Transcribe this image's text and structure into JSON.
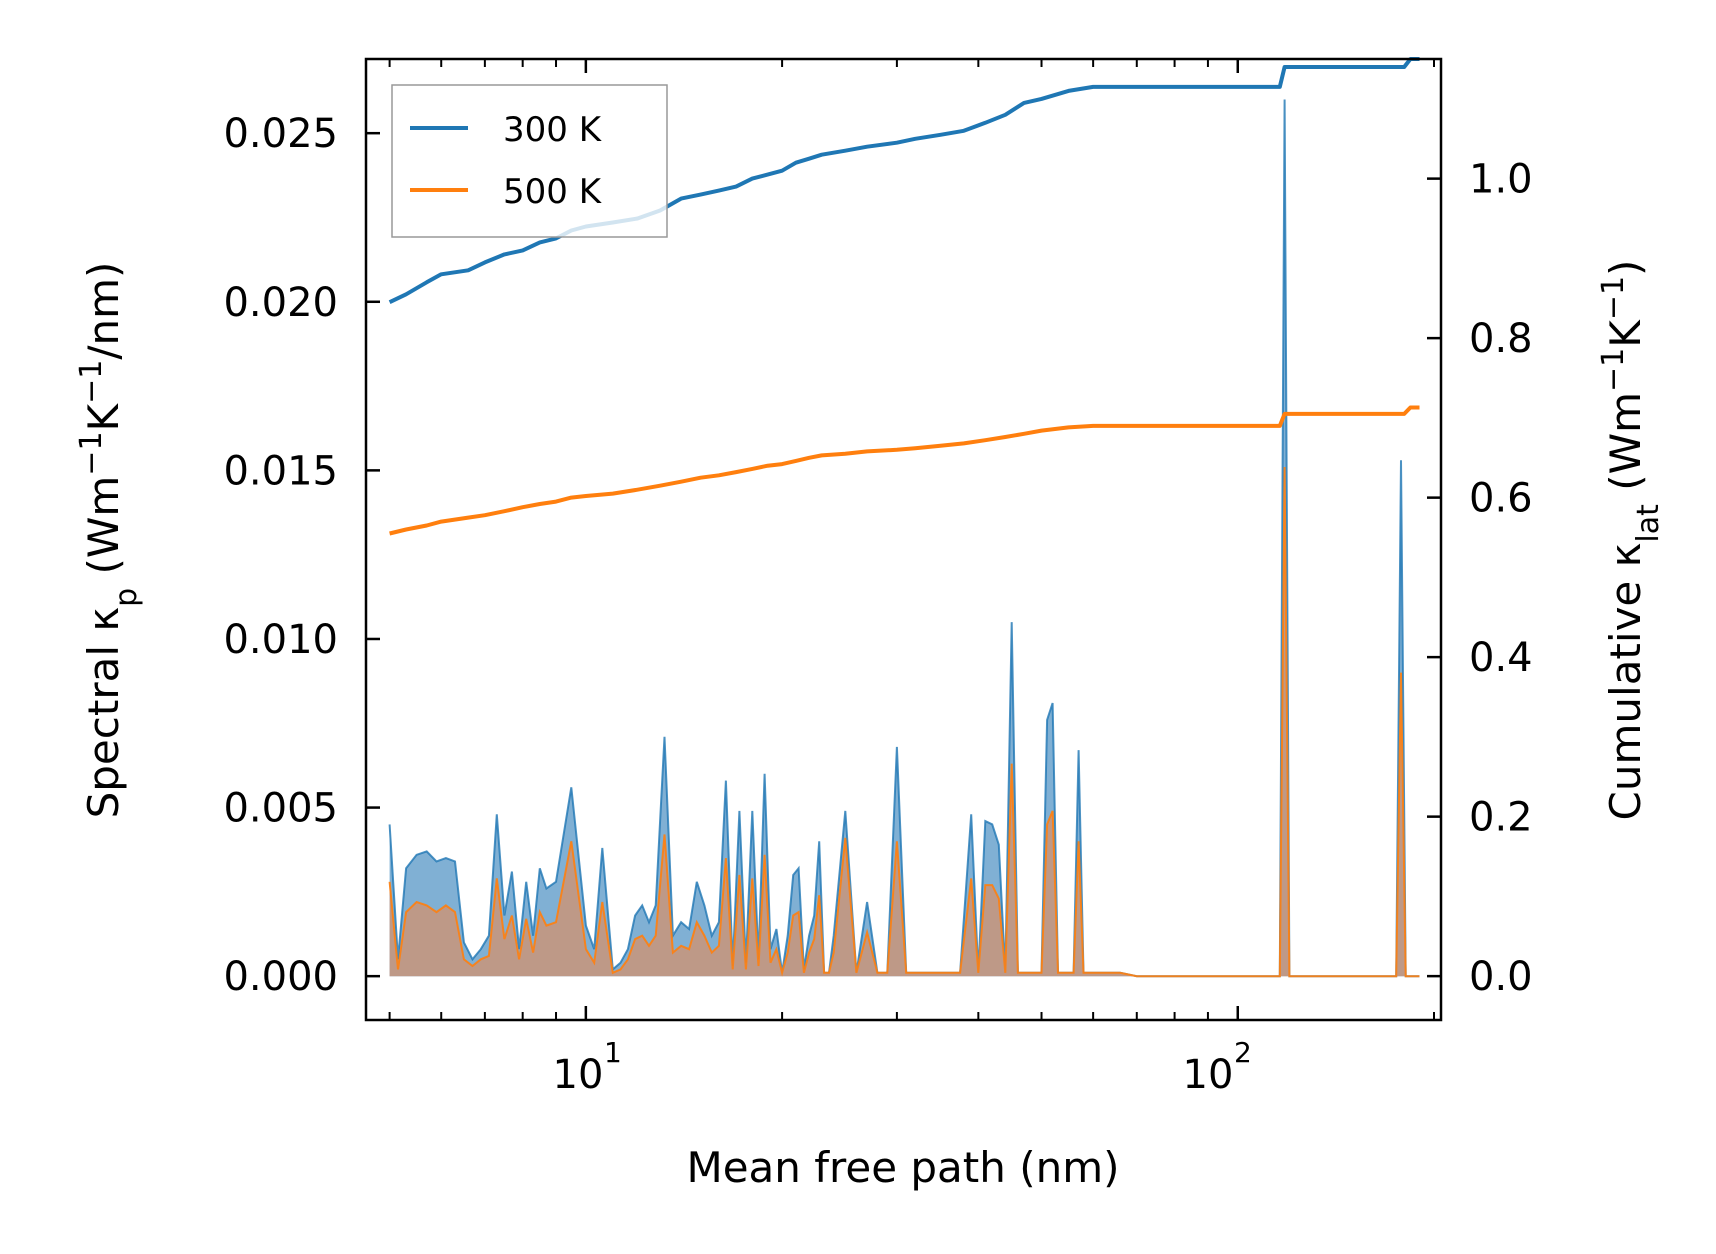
{
  "chart_data": {
    "type": "line",
    "xscale": "log",
    "xlim": [
      4.6,
      205
    ],
    "xlabel": "Mean free path (nm)",
    "ylabel_left": "Spectral κp (Wm−1K−1/nm)",
    "ylabel_right": "Cumulative κlat (Wm−1K−1)",
    "ylim_left": [
      -0.0013,
      0.0272
    ],
    "ylim_right": [
      -0.055,
      1.15
    ],
    "x_tick_labels": [
      "10",
      "1",
      "10",
      "2"
    ],
    "left_tick_labels": [
      "0.000",
      "0.005",
      "0.010",
      "0.015",
      "0.020",
      "0.025"
    ],
    "right_tick_labels": [
      "0.0",
      "0.2",
      "0.4",
      "0.6",
      "0.8",
      "1.0"
    ],
    "legend_position": "top-left",
    "colors": {
      "300K": "#1f77b4",
      "500K": "#ff7f0e",
      "fill_300K": "#6aa2cd",
      "fill_500K": "#c4977e"
    },
    "series": [
      {
        "name": "300 K",
        "color": "#1f77b4",
        "axis": "right",
        "cumulative": [
          [
            5.0,
            0.845
          ],
          [
            5.3,
            0.855
          ],
          [
            5.7,
            0.87
          ],
          [
            6.0,
            0.88
          ],
          [
            6.6,
            0.885
          ],
          [
            7.0,
            0.895
          ],
          [
            7.5,
            0.905
          ],
          [
            8.0,
            0.91
          ],
          [
            8.5,
            0.92
          ],
          [
            9.0,
            0.925
          ],
          [
            9.5,
            0.935
          ],
          [
            10,
            0.94
          ],
          [
            11,
            0.945
          ],
          [
            12,
            0.95
          ],
          [
            13,
            0.96
          ],
          [
            14,
            0.975
          ],
          [
            15,
            0.98
          ],
          [
            16,
            0.985
          ],
          [
            17,
            0.99
          ],
          [
            18,
            1.0
          ],
          [
            19,
            1.005
          ],
          [
            20,
            1.01
          ],
          [
            21,
            1.02
          ],
          [
            22,
            1.025
          ],
          [
            23,
            1.03
          ],
          [
            25,
            1.035
          ],
          [
            27,
            1.04
          ],
          [
            30,
            1.045
          ],
          [
            32,
            1.05
          ],
          [
            35,
            1.055
          ],
          [
            38,
            1.06
          ],
          [
            41,
            1.07
          ],
          [
            44,
            1.08
          ],
          [
            47,
            1.095
          ],
          [
            50,
            1.1
          ],
          [
            55,
            1.11
          ],
          [
            60,
            1.115
          ],
          [
            70,
            1.115
          ],
          [
            90,
            1.115
          ],
          [
            116,
            1.115
          ],
          [
            118,
            1.14
          ],
          [
            125,
            1.14
          ],
          [
            150,
            1.14
          ],
          [
            180,
            1.14
          ],
          [
            184,
            1.15
          ],
          [
            190,
            1.15
          ]
        ]
      },
      {
        "name": "500 K",
        "color": "#ff7f0e",
        "axis": "right",
        "cumulative": [
          [
            5.0,
            0.555
          ],
          [
            5.3,
            0.56
          ],
          [
            5.7,
            0.565
          ],
          [
            6.0,
            0.57
          ],
          [
            6.6,
            0.575
          ],
          [
            7.0,
            0.578
          ],
          [
            7.5,
            0.583
          ],
          [
            8.0,
            0.588
          ],
          [
            8.5,
            0.592
          ],
          [
            9.0,
            0.595
          ],
          [
            9.5,
            0.6
          ],
          [
            10,
            0.602
          ],
          [
            11,
            0.605
          ],
          [
            12,
            0.61
          ],
          [
            13,
            0.615
          ],
          [
            14,
            0.62
          ],
          [
            15,
            0.625
          ],
          [
            16,
            0.628
          ],
          [
            17,
            0.632
          ],
          [
            18,
            0.636
          ],
          [
            19,
            0.64
          ],
          [
            20,
            0.642
          ],
          [
            21,
            0.646
          ],
          [
            22,
            0.65
          ],
          [
            23,
            0.653
          ],
          [
            25,
            0.655
          ],
          [
            27,
            0.658
          ],
          [
            30,
            0.66
          ],
          [
            32,
            0.662
          ],
          [
            35,
            0.665
          ],
          [
            38,
            0.668
          ],
          [
            41,
            0.672
          ],
          [
            44,
            0.676
          ],
          [
            47,
            0.68
          ],
          [
            50,
            0.684
          ],
          [
            55,
            0.688
          ],
          [
            60,
            0.69
          ],
          [
            70,
            0.69
          ],
          [
            90,
            0.69
          ],
          [
            116,
            0.69
          ],
          [
            118,
            0.705
          ],
          [
            125,
            0.705
          ],
          [
            150,
            0.705
          ],
          [
            180,
            0.705
          ],
          [
            184,
            0.713
          ],
          [
            190,
            0.713
          ]
        ]
      }
    ],
    "spectral": {
      "axis": "left",
      "x": [
        5.0,
        5.15,
        5.3,
        5.5,
        5.7,
        5.9,
        6.1,
        6.3,
        6.5,
        6.7,
        6.9,
        7.1,
        7.3,
        7.5,
        7.7,
        7.9,
        8.1,
        8.3,
        8.5,
        8.7,
        9.0,
        9.5,
        10.0,
        10.3,
        10.6,
        11.0,
        11.3,
        11.6,
        11.9,
        12.2,
        12.5,
        12.8,
        13.2,
        13.6,
        14.0,
        14.4,
        14.8,
        15.2,
        15.6,
        16.0,
        16.4,
        16.8,
        17.2,
        17.6,
        18.0,
        18.4,
        18.8,
        19.2,
        19.6,
        20.0,
        20.4,
        20.8,
        21.2,
        21.6,
        22.0,
        22.4,
        22.8,
        23.2,
        23.6,
        24.0,
        25.0,
        26.0,
        27.0,
        28.0,
        29.0,
        30.0,
        31.0,
        32.0,
        33.0,
        34.0,
        35.0,
        36.0,
        37.5,
        39.0,
        40.0,
        41.0,
        42.0,
        43.0,
        44.0,
        45.0,
        46.0,
        47.0,
        48.0,
        49.0,
        50.0,
        51.0,
        52.0,
        53.0,
        54.0,
        55.0,
        56.0,
        57.0,
        58.0,
        60.0,
        62.0,
        64.0,
        66.0,
        70.0,
        80.0,
        90.0,
        100.0,
        110.0,
        114.0,
        116.0,
        118.0,
        120.0,
        122.0,
        124.0,
        130.0,
        150.0,
        175.0,
        178.0,
        181.0,
        184.0,
        187.0,
        190.0
      ],
      "k300": [
        0.0045,
        0.0005,
        0.0032,
        0.0036,
        0.0037,
        0.0034,
        0.0035,
        0.0034,
        0.001,
        0.0005,
        0.0008,
        0.0012,
        0.0048,
        0.0018,
        0.0031,
        0.0008,
        0.0028,
        0.0012,
        0.0032,
        0.0026,
        0.0028,
        0.0056,
        0.0015,
        0.0008,
        0.0038,
        0.0002,
        0.0004,
        0.0008,
        0.0018,
        0.0021,
        0.0016,
        0.0021,
        0.0071,
        0.0012,
        0.0016,
        0.0014,
        0.0028,
        0.0021,
        0.0012,
        0.0016,
        0.0058,
        0.0003,
        0.0049,
        0.0004,
        0.0049,
        0.0005,
        0.006,
        0.0008,
        0.0014,
        0.0001,
        0.0012,
        0.003,
        0.0032,
        0.0002,
        0.0012,
        0.0018,
        0.004,
        0.0001,
        0.0001,
        0.0012,
        0.0049,
        0.0001,
        0.0022,
        0.0001,
        0.0001,
        0.0068,
        0.0001,
        0.0001,
        0.0001,
        0.0001,
        0.0001,
        0.0001,
        0.0001,
        0.0048,
        0.0001,
        0.0046,
        0.0045,
        0.0039,
        0.0001,
        0.0105,
        0.0001,
        0.0001,
        0.0001,
        0.0001,
        0.0001,
        0.0076,
        0.0081,
        0.0001,
        0.0001,
        0.0001,
        0.0001,
        0.0067,
        0.0001,
        0.0001,
        0.0001,
        0.0001,
        0.0001,
        0.0,
        0.0,
        0.0,
        0.0,
        0.0,
        0.0,
        0.0,
        0.026,
        0.0,
        0.0,
        0.0,
        0.0,
        0.0,
        0.0,
        0.0153,
        0.0,
        0.0,
        0.0,
        0.0
      ],
      "k500": [
        0.0028,
        0.0002,
        0.0019,
        0.0022,
        0.0021,
        0.0019,
        0.0021,
        0.0019,
        0.0005,
        0.0003,
        0.0005,
        0.0006,
        0.0029,
        0.0011,
        0.0018,
        0.0005,
        0.0017,
        0.0007,
        0.0019,
        0.0015,
        0.0016,
        0.004,
        0.0008,
        0.0004,
        0.0022,
        0.0001,
        0.0002,
        0.0005,
        0.0011,
        0.0012,
        0.0009,
        0.0012,
        0.0042,
        0.0007,
        0.0009,
        0.0008,
        0.0016,
        0.0012,
        0.0007,
        0.0009,
        0.0035,
        0.0002,
        0.003,
        0.0002,
        0.0029,
        0.0003,
        0.0036,
        0.0004,
        0.0008,
        0.0001,
        0.0007,
        0.0018,
        0.0019,
        0.0001,
        0.0007,
        0.0011,
        0.0024,
        0.0001,
        0.0001,
        0.0007,
        0.0041,
        0.0001,
        0.0013,
        0.0001,
        0.0001,
        0.004,
        0.0001,
        0.0001,
        0.0001,
        0.0001,
        0.0001,
        0.0001,
        0.0001,
        0.0029,
        0.0001,
        0.0027,
        0.0027,
        0.0023,
        0.0001,
        0.0063,
        0.0001,
        0.0001,
        0.0001,
        0.0001,
        0.0001,
        0.0045,
        0.0049,
        0.0001,
        0.0001,
        0.0001,
        0.0001,
        0.004,
        0.0001,
        0.0001,
        0.0001,
        0.0001,
        0.0001,
        0.0,
        0.0,
        0.0,
        0.0,
        0.0,
        0.0,
        0.0,
        0.0151,
        0.0,
        0.0,
        0.0,
        0.0,
        0.0,
        0.0,
        0.009,
        0.0,
        0.0,
        0.0,
        0.0
      ]
    }
  },
  "legend": {
    "items": [
      {
        "label": "300 K",
        "color": "#1f77b4"
      },
      {
        "label": "500 K",
        "color": "#ff7f0e"
      }
    ]
  }
}
